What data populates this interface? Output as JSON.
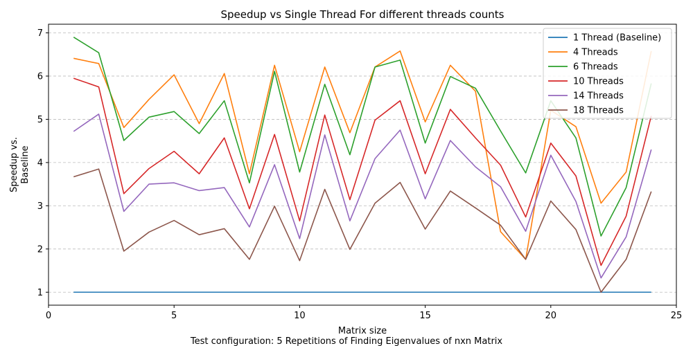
{
  "chart_data": {
    "type": "line",
    "title": "Speedup vs Single Thread For different threads counts",
    "xlabel": "Matrix size",
    "ylabel_lines": [
      "Speedup vs.",
      "Baseline"
    ],
    "footer": "Test configuration: 5 Repetitions of Finding Eigenvalues of nxn Matrix",
    "xlim": [
      0,
      25
    ],
    "ylim": [
      0.7,
      7.2
    ],
    "xticks": [
      0,
      5,
      10,
      15,
      20,
      25
    ],
    "yticks": [
      1,
      2,
      3,
      4,
      5,
      6,
      7
    ],
    "grid": "horizontal dashed",
    "legend_position": "top-right",
    "x": [
      1,
      2,
      3,
      4,
      5,
      6,
      7,
      8,
      9,
      10,
      11,
      12,
      13,
      14,
      15,
      16,
      17,
      18,
      19,
      20,
      21,
      22,
      23,
      24
    ],
    "series": [
      {
        "name": "1 Thread (Baseline)",
        "color": "#1f77b4",
        "values": [
          1,
          1,
          1,
          1,
          1,
          1,
          1,
          1,
          1,
          1,
          1,
          1,
          1,
          1,
          1,
          1,
          1,
          1,
          1,
          1,
          1,
          1,
          1,
          1
        ]
      },
      {
        "name": "4 Threads",
        "color": "#ff7f0e",
        "values": [
          6.41,
          6.29,
          4.81,
          5.46,
          6.03,
          4.9,
          6.06,
          3.74,
          6.25,
          4.25,
          6.21,
          4.69,
          6.21,
          6.58,
          4.94,
          6.25,
          5.65,
          2.4,
          1.76,
          5.21,
          4.83,
          3.06,
          3.78,
          6.58
        ]
      },
      {
        "name": "6 Threads",
        "color": "#2ca02c",
        "values": [
          6.9,
          6.54,
          4.51,
          5.05,
          5.18,
          4.67,
          5.43,
          3.53,
          6.11,
          3.78,
          5.81,
          4.18,
          6.21,
          6.37,
          4.45,
          5.99,
          5.72,
          4.73,
          3.76,
          5.43,
          4.57,
          2.3,
          3.42,
          5.83
        ]
      },
      {
        "name": "10 Threads",
        "color": "#d62728",
        "values": [
          5.95,
          5.75,
          3.28,
          3.86,
          4.26,
          3.74,
          4.57,
          2.93,
          4.65,
          2.65,
          5.1,
          3.14,
          4.98,
          5.43,
          3.74,
          5.23,
          4.57,
          3.94,
          2.74,
          4.45,
          3.69,
          1.62,
          2.76,
          5.08
        ]
      },
      {
        "name": "14 Threads",
        "color": "#9467bd",
        "values": [
          4.72,
          5.12,
          2.87,
          3.5,
          3.53,
          3.35,
          3.42,
          2.51,
          3.95,
          2.24,
          4.64,
          2.65,
          4.09,
          4.75,
          3.16,
          4.51,
          3.9,
          3.44,
          2.41,
          4.17,
          3.1,
          1.33,
          2.28,
          4.3
        ]
      },
      {
        "name": "18 Threads",
        "color": "#8c564b",
        "values": [
          3.67,
          3.85,
          1.95,
          2.39,
          2.66,
          2.33,
          2.47,
          1.76,
          2.99,
          1.73,
          3.38,
          1.99,
          3.06,
          3.54,
          2.46,
          3.34,
          2.95,
          2.55,
          1.76,
          3.11,
          2.45,
          1.0,
          1.76,
          3.33
        ]
      }
    ]
  }
}
